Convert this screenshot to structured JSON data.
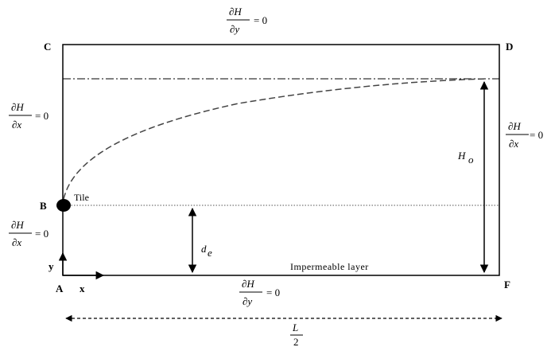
{
  "points": {
    "A": "A",
    "B": "B",
    "C": "C",
    "D": "D",
    "F": "F"
  },
  "boundary_conditions": {
    "top": {
      "numerator": "∂H",
      "denominator": "∂y",
      "equals": "= 0"
    },
    "bottom": {
      "numerator": "∂H",
      "denominator": "∂y",
      "equals": "= 0"
    },
    "left_upper": {
      "numerator": "∂H",
      "denominator": "∂x",
      "equals": "= 0"
    },
    "left_lower": {
      "numerator": "∂H",
      "denominator": "∂x",
      "equals": "= 0"
    },
    "right": {
      "numerator": "∂H",
      "denominator": "∂x",
      "equals": "= 0"
    }
  },
  "labels": {
    "tile": "Tile",
    "impermeable": "Impermeable layer",
    "head_main": "H",
    "head_sub": "o",
    "depth_main": "d",
    "depth_sub": "e",
    "axis_x": "x",
    "axis_y": "y",
    "half_length_num": "L",
    "half_length_den": "2"
  },
  "colors": {
    "line": "#000000",
    "dash": "#444444",
    "background": "#ffffff"
  }
}
